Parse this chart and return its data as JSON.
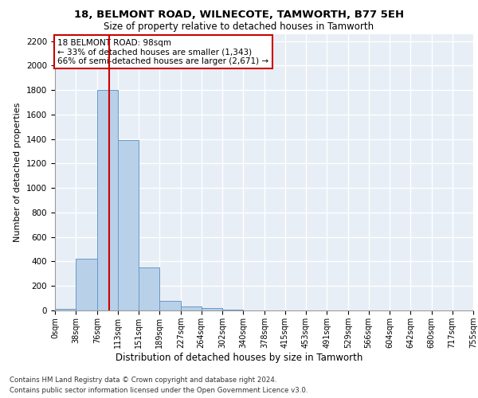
{
  "title1": "18, BELMONT ROAD, WILNECOTE, TAMWORTH, B77 5EH",
  "title2": "Size of property relative to detached houses in Tamworth",
  "xlabel": "Distribution of detached houses by size in Tamworth",
  "ylabel": "Number of detached properties",
  "bin_edges": [
    0,
    38,
    76,
    113,
    151,
    189,
    227,
    264,
    302,
    340,
    378,
    415,
    453,
    491,
    529,
    566,
    604,
    642,
    680,
    717,
    755
  ],
  "bar_heights": [
    15,
    420,
    1800,
    1390,
    350,
    75,
    30,
    20,
    5,
    0,
    0,
    0,
    0,
    0,
    0,
    0,
    0,
    0,
    0,
    0
  ],
  "bar_color": "#b8d0e8",
  "bar_edge_color": "#6699cc",
  "property_size": 98,
  "vline_color": "#cc0000",
  "ylim": [
    0,
    2260
  ],
  "yticks": [
    0,
    200,
    400,
    600,
    800,
    1000,
    1200,
    1400,
    1600,
    1800,
    2000,
    2200
  ],
  "annotation_box_text": "18 BELMONT ROAD: 98sqm\n← 33% of detached houses are smaller (1,343)\n66% of semi-detached houses are larger (2,671) →",
  "annotation_box_color": "#cc0000",
  "annotation_box_bg": "#ffffff",
  "background_color": "#e8eef6",
  "grid_color": "#ffffff",
  "footer1": "Contains HM Land Registry data © Crown copyright and database right 2024.",
  "footer2": "Contains public sector information licensed under the Open Government Licence v3.0."
}
